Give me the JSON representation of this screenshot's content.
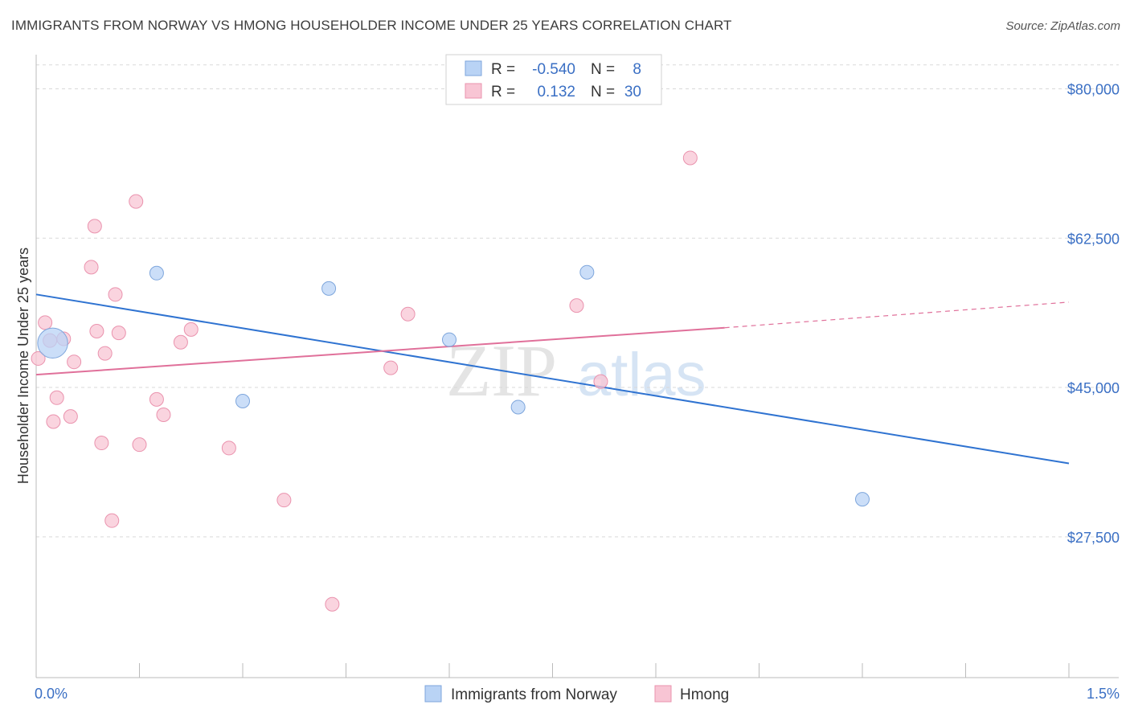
{
  "title": "IMMIGRANTS FROM NORWAY VS HMONG HOUSEHOLDER INCOME UNDER 25 YEARS CORRELATION CHART",
  "source": "Source: ZipAtlas.com",
  "watermark": {
    "zip": "ZIP",
    "atlas": "atlas"
  },
  "colors": {
    "norway_fill": "#b9d3f5",
    "norway_stroke": "#7ea6dc",
    "norway_line": "#2f73d1",
    "hmong_fill": "#f8c5d4",
    "hmong_stroke": "#ea93ae",
    "hmong_line": "#e0709a",
    "grid": "#d9d9d9",
    "axis_text": "#3a6fc4"
  },
  "chart_data": {
    "type": "scatter",
    "title": "IMMIGRANTS FROM NORWAY VS HMONG HOUSEHOLDER INCOME UNDER 25 YEARS CORRELATION CHART",
    "xlabel": "",
    "ylabel": "Householder Income Under 25 years",
    "xlim": [
      0,
      1.5
    ],
    "ylim": [
      11000,
      84000
    ],
    "x_tick_labels": [
      "0.0%",
      "1.5%"
    ],
    "y_ticks": [
      27500,
      45000,
      62500,
      80000
    ],
    "y_tick_labels": [
      "$27,500",
      "$45,000",
      "$62,500",
      "$80,000"
    ],
    "grid": true,
    "legend_top": [
      {
        "r_label": "R =",
        "r_value": "-0.540",
        "n_label": "N =",
        "n_value": "8"
      },
      {
        "r_label": "R =",
        "r_value": "0.132",
        "n_label": "N =",
        "n_value": "30"
      }
    ],
    "series": [
      {
        "name": "Immigrants from Norway",
        "points": [
          [
            0.024,
            50200,
            2.2
          ],
          [
            0.175,
            58400,
            1
          ],
          [
            0.3,
            43400,
            1
          ],
          [
            0.425,
            56600,
            1
          ],
          [
            0.6,
            50600,
            1
          ],
          [
            0.7,
            42700,
            1
          ],
          [
            0.8,
            58500,
            1
          ],
          [
            1.2,
            31900,
            1
          ]
        ],
        "trend": {
          "x": [
            0,
            1.5
          ],
          "y": [
            55900,
            36100
          ]
        }
      },
      {
        "name": "Hmong",
        "points": [
          [
            0.003,
            48400,
            1
          ],
          [
            0.013,
            52600,
            1
          ],
          [
            0.02,
            50500,
            1
          ],
          [
            0.025,
            41000,
            1
          ],
          [
            0.03,
            43800,
            1
          ],
          [
            0.04,
            50700,
            1
          ],
          [
            0.05,
            41600,
            1
          ],
          [
            0.055,
            48000,
            1
          ],
          [
            0.08,
            59100,
            1
          ],
          [
            0.085,
            63900,
            1
          ],
          [
            0.088,
            51600,
            1
          ],
          [
            0.095,
            38500,
            1
          ],
          [
            0.1,
            49000,
            1
          ],
          [
            0.11,
            29400,
            1
          ],
          [
            0.115,
            55900,
            1
          ],
          [
            0.12,
            51400,
            1
          ],
          [
            0.145,
            66800,
            1
          ],
          [
            0.15,
            38300,
            1
          ],
          [
            0.175,
            43600,
            1
          ],
          [
            0.185,
            41800,
            1
          ],
          [
            0.21,
            50300,
            1
          ],
          [
            0.225,
            51800,
            1
          ],
          [
            0.28,
            37900,
            1
          ],
          [
            0.36,
            31800,
            1
          ],
          [
            0.43,
            19600,
            1
          ],
          [
            0.515,
            47300,
            1
          ],
          [
            0.54,
            53600,
            1
          ],
          [
            0.785,
            54600,
            1
          ],
          [
            0.82,
            45700,
            1
          ],
          [
            0.95,
            71900,
            1
          ]
        ],
        "trend": {
          "x": [
            0,
            1.0
          ],
          "y": [
            46500,
            52000
          ]
        },
        "trend_dashed": {
          "x": [
            1.0,
            1.5
          ],
          "y": [
            52000,
            55000
          ]
        }
      }
    ]
  }
}
